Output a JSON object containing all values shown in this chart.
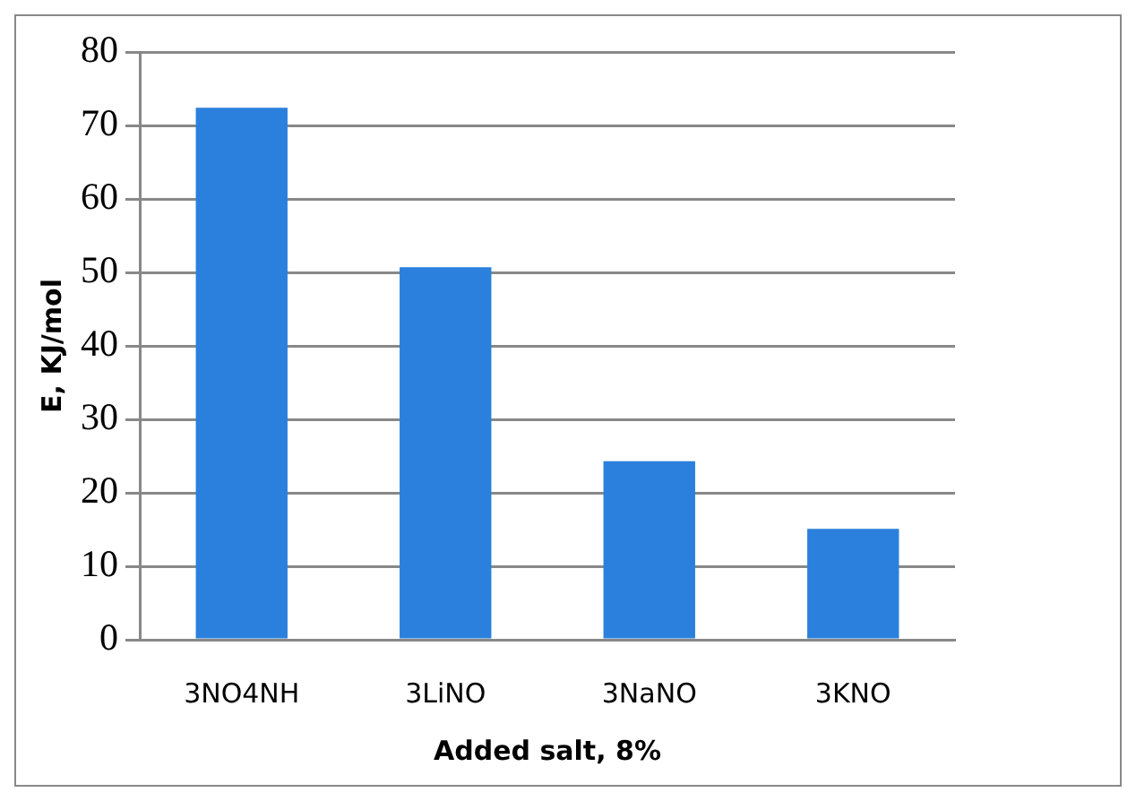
{
  "chart_data": {
    "type": "bar",
    "xlabel": "Added salt, 8%",
    "ylabel": "E, KJ/mol",
    "categories": [
      "3NO4NH",
      "3LiNO",
      "3NaNO",
      "3KNO"
    ],
    "values": [
      72.4,
      50.7,
      24.3,
      15.1
    ],
    "color": "#2a80dc",
    "ylim": [
      0,
      80
    ],
    "yticks": [
      0,
      10,
      20,
      30,
      40,
      50,
      60,
      70,
      80
    ],
    "grid": "y"
  }
}
